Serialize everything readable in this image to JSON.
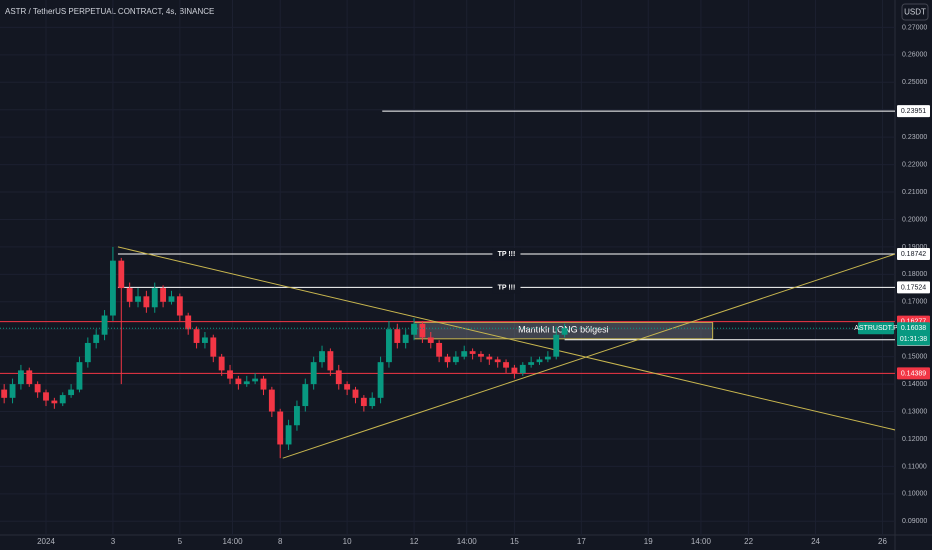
{
  "chart_data": {
    "type": "candlestick",
    "title": "ASTR / TetherUS PERPETUAL CONTRACT, 4s, BINANCE",
    "currency": "USDT",
    "up_color": "#089981",
    "down_color": "#f23645",
    "xlim": [
      -0.5,
      106.5
    ],
    "xticks": [
      {
        "value": 5,
        "label": "2024"
      },
      {
        "value": 13,
        "label": "3"
      },
      {
        "value": 21,
        "label": "5"
      },
      {
        "value": 27.3,
        "label": "14:00"
      },
      {
        "value": 33,
        "label": "8"
      },
      {
        "value": 41,
        "label": "10"
      },
      {
        "value": 49,
        "label": "12"
      },
      {
        "value": 55.3,
        "label": "14:00"
      },
      {
        "value": 61,
        "label": "15"
      },
      {
        "value": 69,
        "label": "17"
      },
      {
        "value": 77,
        "label": "19"
      },
      {
        "value": 83.3,
        "label": "14:00"
      },
      {
        "value": 89,
        "label": "22"
      },
      {
        "value": 97,
        "label": "24"
      },
      {
        "value": 105,
        "label": "26"
      }
    ],
    "ylim": [
      0.085,
      0.28
    ],
    "yticks": [
      {
        "value": 0.09,
        "label": "0.09000"
      },
      {
        "value": 0.1,
        "label": "0.10000"
      },
      {
        "value": 0.11,
        "label": "0.11000"
      },
      {
        "value": 0.12,
        "label": "0.12000"
      },
      {
        "value": 0.13,
        "label": "0.13000"
      },
      {
        "value": 0.14,
        "label": "0.14000"
      },
      {
        "value": 0.15,
        "label": "0.15000"
      },
      {
        "value": 0.16,
        "label": "0.16000"
      },
      {
        "value": 0.17,
        "label": "0.17000"
      },
      {
        "value": 0.18,
        "label": "0.18000"
      },
      {
        "value": 0.19,
        "label": "0.19000"
      },
      {
        "value": 0.2,
        "label": "0.20000"
      },
      {
        "value": 0.21,
        "label": "0.21000"
      },
      {
        "value": 0.22,
        "label": "0.22000"
      },
      {
        "value": 0.23,
        "label": "0.23000"
      },
      {
        "value": 0.24,
        "label": "0.24000"
      },
      {
        "value": 0.25,
        "label": "0.25000"
      },
      {
        "value": 0.26,
        "label": "0.26000"
      },
      {
        "value": 0.27,
        "label": "0.27000"
      }
    ],
    "open": [
      0.138,
      0.135,
      0.14,
      0.145,
      0.14,
      0.137,
      0.134,
      0.133,
      0.136,
      0.138,
      0.148,
      0.155,
      0.158,
      0.165,
      0.185,
      0.175,
      0.17,
      0.172,
      0.168,
      0.175,
      0.17,
      0.172,
      0.165,
      0.16,
      0.155,
      0.157,
      0.15,
      0.145,
      0.142,
      0.14,
      0.141,
      0.142,
      0.138,
      0.13,
      0.118,
      0.125,
      0.132,
      0.14,
      0.148,
      0.152,
      0.145,
      0.14,
      0.138,
      0.135,
      0.132,
      0.135,
      0.148,
      0.16,
      0.155,
      0.158,
      0.162,
      0.157,
      0.155,
      0.15,
      0.148,
      0.15,
      0.152,
      0.151,
      0.15,
      0.149,
      0.148,
      0.146,
      0.144,
      0.147,
      0.148,
      0.149,
      0.15,
      0.158
    ],
    "high": [
      0.14,
      0.142,
      0.147,
      0.146,
      0.141,
      0.138,
      0.135,
      0.137,
      0.14,
      0.15,
      0.157,
      0.16,
      0.167,
      0.19,
      0.186,
      0.177,
      0.175,
      0.174,
      0.177,
      0.176,
      0.174,
      0.173,
      0.166,
      0.161,
      0.159,
      0.158,
      0.151,
      0.147,
      0.143,
      0.143,
      0.144,
      0.143,
      0.139,
      0.131,
      0.127,
      0.134,
      0.142,
      0.15,
      0.154,
      0.153,
      0.147,
      0.141,
      0.139,
      0.136,
      0.137,
      0.15,
      0.163,
      0.162,
      0.16,
      0.164,
      0.163,
      0.159,
      0.156,
      0.151,
      0.152,
      0.154,
      0.153,
      0.152,
      0.151,
      0.15,
      0.149,
      0.147,
      0.148,
      0.15,
      0.15,
      0.152,
      0.161,
      0.162
    ],
    "low": [
      0.133,
      0.133,
      0.138,
      0.139,
      0.135,
      0.132,
      0.131,
      0.132,
      0.135,
      0.137,
      0.146,
      0.153,
      0.156,
      0.163,
      0.14,
      0.168,
      0.168,
      0.166,
      0.166,
      0.168,
      0.169,
      0.163,
      0.158,
      0.153,
      0.153,
      0.148,
      0.143,
      0.14,
      0.138,
      0.139,
      0.14,
      0.136,
      0.128,
      0.113,
      0.116,
      0.123,
      0.13,
      0.138,
      0.146,
      0.143,
      0.138,
      0.136,
      0.133,
      0.13,
      0.131,
      0.133,
      0.146,
      0.153,
      0.153,
      0.156,
      0.155,
      0.153,
      0.148,
      0.146,
      0.147,
      0.149,
      0.149,
      0.148,
      0.147,
      0.146,
      0.144,
      0.142,
      0.143,
      0.146,
      0.147,
      0.148,
      0.149,
      0.157
    ],
    "close": [
      0.135,
      0.14,
      0.145,
      0.14,
      0.137,
      0.134,
      0.133,
      0.136,
      0.138,
      0.148,
      0.155,
      0.158,
      0.165,
      0.185,
      0.175,
      0.17,
      0.172,
      0.168,
      0.175,
      0.17,
      0.172,
      0.165,
      0.16,
      0.155,
      0.157,
      0.15,
      0.145,
      0.142,
      0.14,
      0.141,
      0.142,
      0.138,
      0.13,
      0.118,
      0.125,
      0.132,
      0.14,
      0.148,
      0.152,
      0.145,
      0.14,
      0.138,
      0.135,
      0.132,
      0.135,
      0.148,
      0.16,
      0.155,
      0.158,
      0.162,
      0.157,
      0.155,
      0.15,
      0.148,
      0.15,
      0.152,
      0.151,
      0.15,
      0.149,
      0.148,
      0.146,
      0.144,
      0.147,
      0.148,
      0.149,
      0.15,
      0.158,
      0.16038
    ],
    "levels": [
      {
        "value": 0.23951,
        "x_start": 45.2,
        "color": "#ffffff"
      },
      {
        "value": 0.18742,
        "x_start": 13.6,
        "color": "#ffffff",
        "text": "TP !!!"
      },
      {
        "value": 0.17524,
        "x_start": 13.6,
        "color": "#ffffff",
        "text": "TP !!!"
      },
      {
        "value": 0.16277,
        "x_start": -0.5,
        "color": "#f23645"
      },
      {
        "value": 0.14389,
        "x_start": -0.5,
        "color": "#f23645"
      },
      {
        "value": 0.15615,
        "x_start": 67,
        "color": "#ffffff"
      }
    ],
    "trendlines": [
      {
        "x": [
          13.6,
          109.7
        ],
        "y": [
          0.19,
          0.121
        ],
        "color": "#c9b74f"
      },
      {
        "x": [
          33.3,
          106.5
        ],
        "y": [
          0.113,
          0.1874
        ],
        "color": "#c9b74f"
      }
    ],
    "box": {
      "x": [
        49,
        84.7
      ],
      "y": [
        0.1565,
        0.1625
      ],
      "label": "Mantıklı LONG bölgesi"
    },
    "current": {
      "value": 0.16038,
      "symbol": "ASTRUSDT.P",
      "countdown": "01:31:38",
      "color": "#089981"
    }
  }
}
